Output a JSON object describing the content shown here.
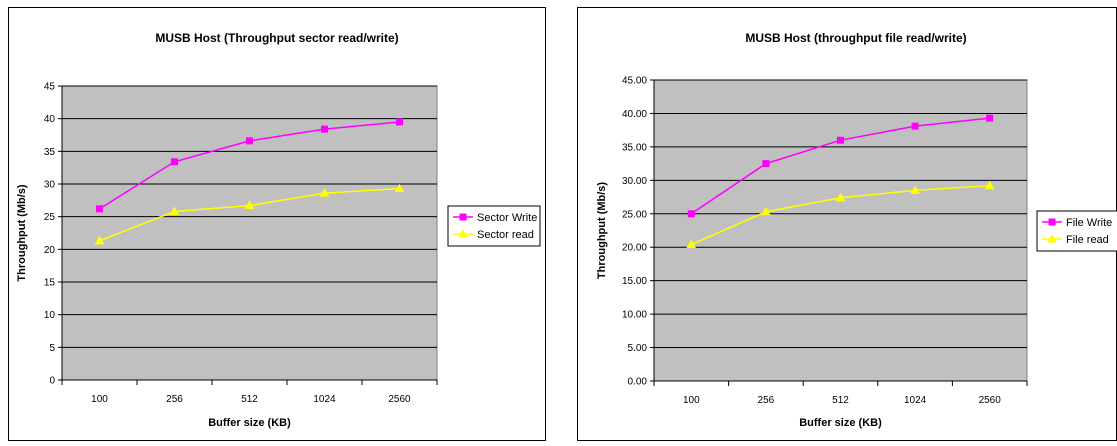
{
  "chart_data": [
    {
      "type": "line",
      "title": "MUSB Host (Throughput sector read/write)",
      "xlabel": "Buffer size (KB)",
      "ylabel": "Throughput (Mb/s)",
      "categories": [
        "100",
        "256",
        "512",
        "1024",
        "2560"
      ],
      "ylim": [
        0,
        45
      ],
      "y_ticks": [
        "0",
        "5",
        "10",
        "15",
        "20",
        "25",
        "30",
        "35",
        "40",
        "45"
      ],
      "grid": "horizontal",
      "legend_position": "right",
      "plot_background": "#c0c0c0",
      "series": [
        {
          "name": "Sector Write",
          "values": [
            26.2,
            33.4,
            36.6,
            38.4,
            39.5
          ],
          "color": "#ff00ff",
          "marker": "square"
        },
        {
          "name": "Sector read",
          "values": [
            21.3,
            25.8,
            26.7,
            28.6,
            29.3
          ],
          "color": "#ffff00",
          "marker": "triangle"
        }
      ]
    },
    {
      "type": "line",
      "title": "MUSB Host (throughput file read/write)",
      "xlabel": "Buffer size (KB)",
      "ylabel": "Throughput (Mb/s)",
      "categories": [
        "100",
        "256",
        "512",
        "1024",
        "2560"
      ],
      "ylim": [
        0,
        45
      ],
      "y_ticks": [
        "0.00",
        "5.00",
        "10.00",
        "15.00",
        "20.00",
        "25.00",
        "30.00",
        "35.00",
        "40.00",
        "45.00"
      ],
      "grid": "horizontal",
      "legend_position": "right",
      "plot_background": "#c0c0c0",
      "series": [
        {
          "name": "File Write",
          "values": [
            25.0,
            32.5,
            36.0,
            38.1,
            39.3
          ],
          "color": "#ff00ff",
          "marker": "square"
        },
        {
          "name": "File read",
          "values": [
            20.4,
            25.3,
            27.4,
            28.5,
            29.2
          ],
          "color": "#ffff00",
          "marker": "triangle"
        }
      ]
    }
  ]
}
